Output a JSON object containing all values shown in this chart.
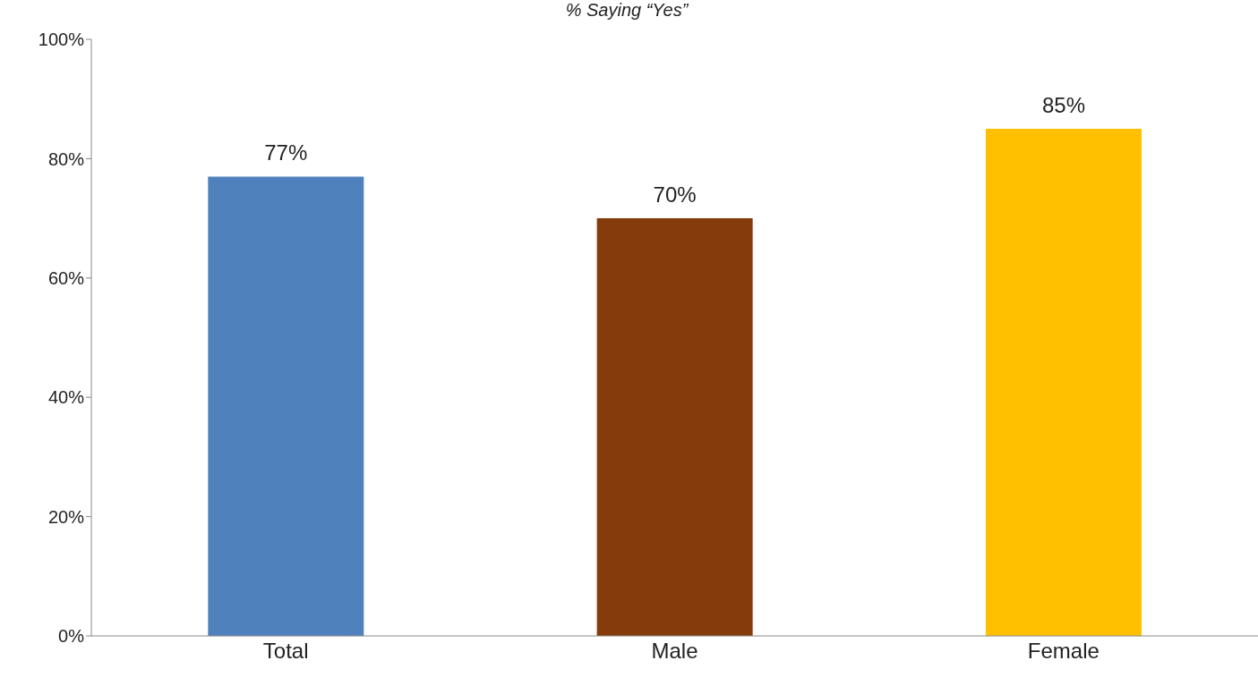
{
  "chart_data": {
    "type": "bar",
    "title": "% Saying “Yes”",
    "categories": [
      "Total",
      "Male",
      "Female"
    ],
    "values": [
      77,
      70,
      85
    ],
    "colors": [
      "#4f81bd",
      "#843c0c",
      "#ffc000"
    ],
    "value_labels": [
      "77%",
      "70%",
      "85%"
    ],
    "ylim": [
      0,
      100
    ],
    "yticks": [
      {
        "value": 0,
        "label": "0%"
      },
      {
        "value": 20,
        "label": "20%"
      },
      {
        "value": 40,
        "label": "40%"
      },
      {
        "value": 60,
        "label": "60%"
      },
      {
        "value": 80,
        "label": "80%"
      },
      {
        "value": 100,
        "label": "100%"
      }
    ],
    "grid": false
  }
}
